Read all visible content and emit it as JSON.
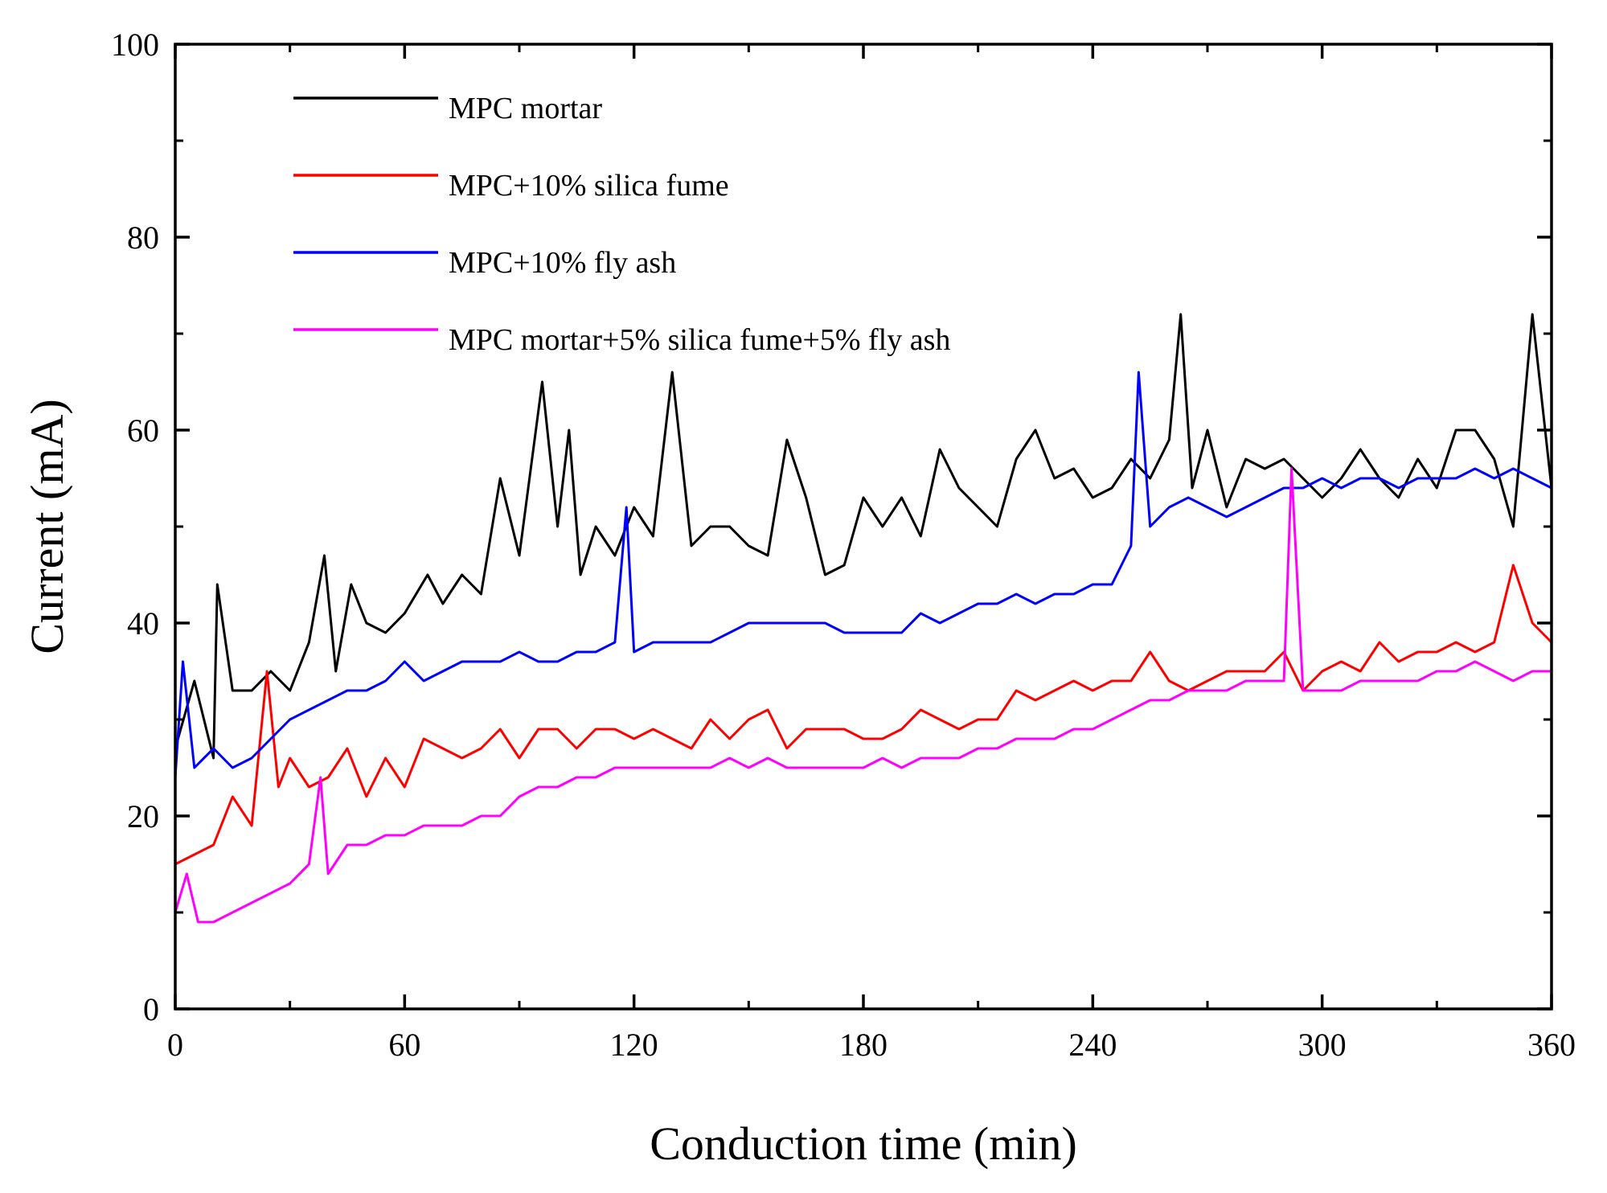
{
  "chart_data": {
    "type": "line",
    "title": "",
    "xlabel": "Conduction time (min)",
    "ylabel": "Current (mA)",
    "xlim": [
      0,
      360
    ],
    "ylim": [
      0,
      100
    ],
    "xticks": [
      0,
      60,
      120,
      180,
      240,
      300,
      360
    ],
    "yticks": [
      0,
      20,
      40,
      60,
      80,
      100
    ],
    "xtick_labels": [
      "0",
      "60",
      "120",
      "180",
      "240",
      "300",
      "360"
    ],
    "ytick_labels": [
      "0",
      "20",
      "40",
      "60",
      "80",
      "100"
    ],
    "grid": false,
    "legend_position": "top-left",
    "series": [
      {
        "name": "MPC mortar",
        "color": "#000000",
        "x": [
          0,
          5,
          10,
          11,
          15,
          20,
          25,
          30,
          35,
          39,
          42,
          46,
          50,
          55,
          60,
          66,
          70,
          75,
          80,
          85,
          90,
          96,
          100,
          103,
          106,
          110,
          115,
          120,
          125,
          130,
          135,
          140,
          145,
          150,
          155,
          160,
          165,
          170,
          175,
          180,
          185,
          190,
          195,
          200,
          205,
          210,
          215,
          220,
          225,
          230,
          235,
          240,
          245,
          250,
          255,
          260,
          263,
          266,
          270,
          275,
          280,
          285,
          290,
          295,
          300,
          305,
          310,
          315,
          320,
          325,
          330,
          335,
          340,
          345,
          350,
          355,
          360
        ],
        "values": [
          27,
          34,
          26,
          44,
          33,
          33,
          35,
          33,
          38,
          47,
          35,
          44,
          40,
          39,
          41,
          45,
          42,
          45,
          43,
          55,
          47,
          65,
          50,
          60,
          45,
          50,
          47,
          52,
          49,
          66,
          48,
          50,
          50,
          48,
          47,
          59,
          53,
          45,
          46,
          53,
          50,
          53,
          49,
          58,
          54,
          52,
          50,
          57,
          60,
          55,
          56,
          53,
          54,
          57,
          55,
          59,
          72,
          54,
          60,
          52,
          57,
          56,
          57,
          55,
          53,
          55,
          58,
          55,
          53,
          57,
          54,
          60,
          60,
          57,
          50,
          72,
          54
        ]
      },
      {
        "name": "MPC+10% silica fume",
        "color": "#ff0000",
        "x": [
          0,
          5,
          10,
          15,
          20,
          24,
          27,
          30,
          35,
          40,
          45,
          50,
          55,
          60,
          65,
          70,
          75,
          80,
          85,
          90,
          95,
          100,
          105,
          110,
          115,
          120,
          125,
          130,
          135,
          140,
          145,
          150,
          155,
          160,
          165,
          170,
          175,
          180,
          185,
          190,
          195,
          200,
          205,
          210,
          215,
          220,
          225,
          230,
          235,
          240,
          245,
          250,
          255,
          260,
          265,
          270,
          275,
          280,
          285,
          290,
          295,
          300,
          305,
          310,
          315,
          320,
          325,
          330,
          335,
          340,
          345,
          350,
          355,
          360
        ],
        "values": [
          15,
          16,
          17,
          22,
          19,
          35,
          23,
          26,
          23,
          24,
          27,
          22,
          26,
          23,
          28,
          27,
          26,
          27,
          29,
          26,
          29,
          29,
          27,
          29,
          29,
          28,
          29,
          28,
          27,
          30,
          28,
          30,
          31,
          27,
          29,
          29,
          29,
          28,
          28,
          29,
          31,
          30,
          29,
          30,
          30,
          33,
          32,
          33,
          34,
          33,
          34,
          34,
          37,
          34,
          33,
          34,
          35,
          35,
          35,
          37,
          33,
          35,
          36,
          35,
          38,
          36,
          37,
          37,
          38,
          37,
          38,
          46,
          40,
          38
        ]
      },
      {
        "name": "MPC+10% fly ash",
        "color": "#0000ff",
        "x": [
          0,
          2,
          5,
          10,
          15,
          20,
          25,
          30,
          35,
          40,
          45,
          50,
          55,
          60,
          65,
          70,
          75,
          80,
          85,
          90,
          95,
          100,
          105,
          110,
          115,
          118,
          120,
          125,
          130,
          135,
          140,
          145,
          150,
          155,
          160,
          165,
          170,
          175,
          180,
          185,
          190,
          195,
          200,
          205,
          210,
          215,
          220,
          225,
          230,
          235,
          240,
          245,
          250,
          252,
          255,
          260,
          265,
          270,
          275,
          280,
          285,
          290,
          295,
          300,
          305,
          310,
          315,
          320,
          325,
          330,
          335,
          340,
          345,
          350,
          355,
          360
        ],
        "values": [
          24,
          36,
          25,
          27,
          25,
          26,
          28,
          30,
          31,
          32,
          33,
          33,
          34,
          36,
          34,
          35,
          36,
          36,
          36,
          37,
          36,
          36,
          37,
          37,
          38,
          52,
          37,
          38,
          38,
          38,
          38,
          39,
          40,
          40,
          40,
          40,
          40,
          39,
          39,
          39,
          39,
          41,
          40,
          41,
          42,
          42,
          43,
          42,
          43,
          43,
          44,
          44,
          48,
          66,
          50,
          52,
          53,
          52,
          51,
          52,
          53,
          54,
          54,
          55,
          54,
          55,
          55,
          54,
          55,
          55,
          55,
          56,
          55,
          56,
          55,
          54
        ]
      },
      {
        "name": "MPC mortar+5% silica fume+5% fly ash",
        "color": "#ff00ff",
        "x": [
          0,
          3,
          6,
          10,
          15,
          20,
          25,
          30,
          35,
          38,
          40,
          45,
          50,
          55,
          60,
          65,
          70,
          75,
          80,
          85,
          90,
          95,
          100,
          105,
          110,
          115,
          120,
          125,
          130,
          135,
          140,
          145,
          150,
          155,
          160,
          165,
          170,
          175,
          180,
          185,
          190,
          195,
          200,
          205,
          210,
          215,
          220,
          225,
          230,
          235,
          240,
          245,
          250,
          255,
          260,
          265,
          270,
          275,
          280,
          285,
          290,
          292,
          295,
          300,
          305,
          310,
          315,
          320,
          325,
          330,
          335,
          340,
          345,
          350,
          355,
          360
        ],
        "values": [
          10,
          14,
          9,
          9,
          10,
          11,
          12,
          13,
          15,
          24,
          14,
          17,
          17,
          18,
          18,
          19,
          19,
          19,
          20,
          20,
          22,
          23,
          23,
          24,
          24,
          25,
          25,
          25,
          25,
          25,
          25,
          26,
          25,
          26,
          25,
          25,
          25,
          25,
          25,
          26,
          25,
          26,
          26,
          26,
          27,
          27,
          28,
          28,
          28,
          29,
          29,
          30,
          31,
          32,
          32,
          33,
          33,
          33,
          34,
          34,
          34,
          56,
          33,
          33,
          33,
          34,
          34,
          34,
          34,
          35,
          35,
          36,
          35,
          34,
          35,
          35
        ]
      }
    ]
  }
}
